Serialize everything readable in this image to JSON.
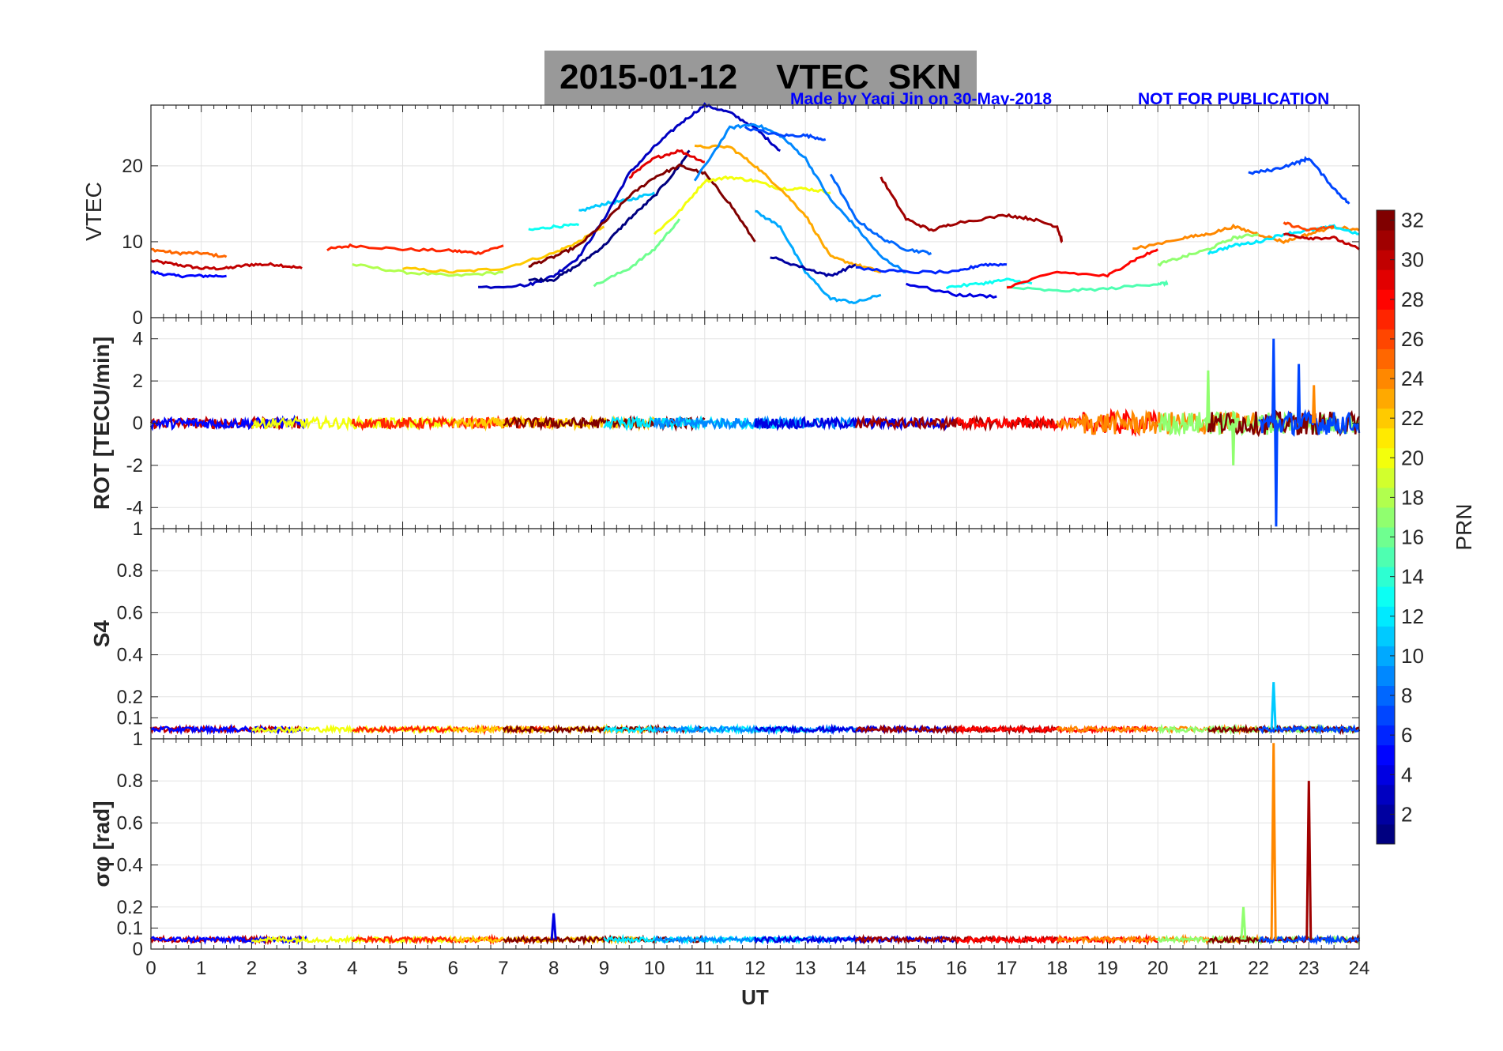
{
  "figure": {
    "title": "2015-01-12    VTEC  SKN",
    "credit": "Made by Yaqi Jin on 30-May-2018",
    "notice": "NOT FOR PUBLICATION"
  },
  "chart_data": [
    {
      "type": "line",
      "panel": "vtec",
      "ylabel": "VTEC",
      "xlim": [
        0,
        24
      ],
      "ylim": [
        0,
        28
      ],
      "yticks": [
        0,
        10,
        20
      ],
      "grid": true,
      "series": [
        {
          "prn": 30,
          "x": [
            0,
            0.5,
            1,
            1.5,
            2,
            2.5,
            3
          ],
          "y": [
            7.5,
            7,
            6.5,
            6.5,
            7,
            7,
            6.5
          ]
        },
        {
          "prn": 25,
          "x": [
            0,
            0.5,
            1,
            1.5
          ],
          "y": [
            9,
            8.5,
            8.5,
            8
          ]
        },
        {
          "prn": 5,
          "x": [
            0,
            0.5,
            1,
            1.5
          ],
          "y": [
            6,
            5.5,
            5.5,
            5.5
          ]
        },
        {
          "prn": 27,
          "x": [
            3.5,
            4,
            5,
            6,
            6.5,
            7
          ],
          "y": [
            9,
            9.5,
            9,
            8.8,
            8.5,
            9.5
          ]
        },
        {
          "prn": 18,
          "x": [
            4,
            5,
            6,
            7
          ],
          "y": [
            7,
            6,
            5.5,
            6
          ]
        },
        {
          "prn": 22,
          "x": [
            5,
            6,
            7,
            8,
            8.5,
            9
          ],
          "y": [
            6.5,
            6,
            6.5,
            8.5,
            10,
            12
          ]
        },
        {
          "prn": 13,
          "x": [
            7.5,
            8,
            8.5
          ],
          "y": [
            11.5,
            12,
            12.2
          ]
        },
        {
          "prn": 11,
          "x": [
            8.5,
            9,
            9.5,
            10
          ],
          "y": [
            14,
            15,
            15.5,
            16.5
          ]
        },
        {
          "prn": 3,
          "x": [
            6.5,
            7.5,
            8,
            8.5,
            9,
            9.5,
            10,
            10.5,
            11,
            11.5,
            12,
            12.5
          ],
          "y": [
            4,
            4.3,
            5.5,
            8,
            13,
            19,
            22.5,
            25.5,
            28,
            27,
            25,
            22
          ]
        },
        {
          "prn": 1,
          "x": [
            7.5,
            8,
            8.5,
            9,
            9.5,
            10,
            10.5,
            10.7
          ],
          "y": [
            5,
            5,
            7,
            9.5,
            13,
            16,
            20,
            22
          ]
        },
        {
          "prn": 32,
          "x": [
            7.5,
            8,
            8.5,
            9,
            9.5,
            10,
            10.5,
            11,
            11.5,
            12
          ],
          "y": [
            6.8,
            8,
            9.5,
            12.5,
            16,
            18.5,
            20,
            19,
            15,
            10
          ]
        },
        {
          "prn": 29,
          "x": [
            9.5,
            10,
            10.5,
            11
          ],
          "y": [
            18.5,
            21,
            22,
            20.5
          ]
        },
        {
          "prn": 20,
          "x": [
            10,
            10.5,
            11,
            11.5,
            12,
            12.5,
            13,
            13.5
          ],
          "y": [
            11,
            14,
            18,
            18.5,
            18,
            17,
            17,
            16.5
          ]
        },
        {
          "prn": 16,
          "x": [
            8.8,
            9.5,
            10,
            10.5
          ],
          "y": [
            4.2,
            6.5,
            9,
            13
          ]
        },
        {
          "prn": 23,
          "x": [
            10.8,
            11.5,
            12,
            12.5,
            13,
            13.5,
            14,
            14.5
          ],
          "y": [
            22.5,
            22.5,
            20,
            17,
            13.5,
            8,
            7,
            6
          ]
        },
        {
          "prn": 9,
          "x": [
            10.8,
            11.5,
            12,
            12.5,
            13,
            13.5,
            14,
            14.5,
            15
          ],
          "y": [
            18,
            25,
            25.5,
            24,
            21,
            15.5,
            12,
            8,
            6
          ]
        },
        {
          "prn": 7,
          "x": [
            11.8,
            12.5,
            13,
            13.4
          ],
          "y": [
            25,
            24,
            24,
            23.5
          ]
        },
        {
          "prn": 10,
          "x": [
            12,
            12.5,
            13,
            13.5,
            14,
            14.5
          ],
          "y": [
            14,
            12,
            6,
            2.5,
            2,
            3
          ]
        },
        {
          "prn": 8,
          "x": [
            13.5,
            14,
            14.5,
            15,
            15.5
          ],
          "y": [
            19,
            13,
            10.5,
            9,
            8.5
          ]
        },
        {
          "prn": 2,
          "x": [
            12.3,
            13,
            13.5,
            14
          ],
          "y": [
            8,
            6.5,
            5.5,
            7
          ]
        },
        {
          "prn": 31,
          "x": [
            14.5,
            15,
            15.5,
            16,
            17,
            17.5,
            18,
            18.1
          ],
          "y": [
            18.5,
            13,
            11.5,
            12.5,
            13.5,
            13,
            12,
            10
          ]
        },
        {
          "prn": 6,
          "x": [
            14,
            15,
            16,
            16.5,
            17
          ],
          "y": [
            6.5,
            6,
            6,
            7,
            7
          ]
        },
        {
          "prn": 4,
          "x": [
            15,
            16,
            16.8
          ],
          "y": [
            4.5,
            3,
            2.8
          ]
        },
        {
          "prn": 13,
          "x": [
            15.8,
            16.5,
            17,
            17.5
          ],
          "y": [
            4,
            4.5,
            5,
            4.5
          ]
        },
        {
          "prn": 15,
          "x": [
            17,
            18,
            19,
            20,
            20.2
          ],
          "y": [
            4,
            3.5,
            3.8,
            4.5,
            4.5
          ]
        },
        {
          "prn": 28,
          "x": [
            17,
            18,
            19,
            19.5,
            20
          ],
          "y": [
            4,
            6,
            5.5,
            7.5,
            9
          ]
        },
        {
          "prn": 24,
          "x": [
            19.5,
            20.5,
            21,
            21.5,
            22,
            22.5,
            23,
            23.5,
            24
          ],
          "y": [
            9,
            10.5,
            11,
            12,
            11,
            10,
            11,
            12,
            11.5
          ]
        },
        {
          "prn": 17,
          "x": [
            20,
            20.5,
            21,
            21.5,
            22
          ],
          "y": [
            7,
            8,
            9,
            10.5,
            11
          ]
        },
        {
          "prn": 12,
          "x": [
            21,
            21.5,
            22,
            22.5,
            23,
            23.5,
            24
          ],
          "y": [
            8.5,
            9.5,
            10,
            11,
            11.5,
            12,
            11
          ]
        },
        {
          "prn": 7,
          "x": [
            21.8,
            22.3,
            22.8,
            23,
            23.5,
            23.8
          ],
          "y": [
            19,
            19.5,
            20.5,
            21,
            17,
            15
          ]
        },
        {
          "prn": 30,
          "x": [
            22.5,
            23,
            23.5,
            24
          ],
          "y": [
            11,
            10.5,
            10.5,
            9
          ]
        },
        {
          "prn": 26,
          "x": [
            22.5,
            23,
            23.5
          ],
          "y": [
            12.5,
            11.5,
            12
          ]
        }
      ]
    },
    {
      "type": "line",
      "panel": "rot",
      "ylabel": "ROT [TECU/min]",
      "xlim": [
        0,
        24
      ],
      "ylim": [
        -5,
        5
      ],
      "yticks": [
        -4,
        -2,
        0,
        2,
        4
      ],
      "grid": true,
      "description_peaks": [
        {
          "prn": 7,
          "x": 22.3,
          "y": 4
        },
        {
          "prn": 7,
          "x": 22.35,
          "y": -4.9
        },
        {
          "prn": 17,
          "x": 21.0,
          "y": 2.5
        },
        {
          "prn": 17,
          "x": 21.5,
          "y": -2
        },
        {
          "prn": 7,
          "x": 22.8,
          "y": 2.8
        },
        {
          "prn": 24,
          "x": 23.1,
          "y": 1.8
        }
      ]
    },
    {
      "type": "line",
      "panel": "s4",
      "ylabel": "S4",
      "xlim": [
        0,
        24
      ],
      "ylim": [
        0,
        1
      ],
      "yticks": [
        0.1,
        0.2,
        0.4,
        0.6,
        0.8,
        1
      ],
      "grid": true,
      "description_peaks": [
        {
          "prn": 11,
          "x": 22.3,
          "y": 0.27
        }
      ]
    },
    {
      "type": "line",
      "panel": "sigma_phi",
      "ylabel": "σφ [rad]",
      "xlabel": "UT",
      "xlim": [
        0,
        24
      ],
      "ylim": [
        0,
        1
      ],
      "yticks": [
        0,
        0.1,
        0.2,
        0.4,
        0.6,
        0.8,
        1
      ],
      "xticks": [
        0,
        1,
        2,
        3,
        4,
        5,
        6,
        7,
        8,
        9,
        10,
        11,
        12,
        13,
        14,
        15,
        16,
        17,
        18,
        19,
        20,
        21,
        22,
        23,
        24
      ],
      "grid": true,
      "description_peaks": [
        {
          "prn": 24,
          "x": 22.3,
          "y": 0.98
        },
        {
          "prn": 31,
          "x": 23.0,
          "y": 0.8
        },
        {
          "prn": 4,
          "x": 8.0,
          "y": 0.17
        },
        {
          "prn": 17,
          "x": 21.7,
          "y": 0.2
        }
      ]
    }
  ],
  "colorbar": {
    "label": "PRN",
    "range": [
      1,
      32
    ],
    "ticks": [
      2,
      4,
      6,
      8,
      10,
      12,
      14,
      16,
      18,
      20,
      22,
      24,
      26,
      28,
      30,
      32
    ],
    "colormap": "jet"
  }
}
